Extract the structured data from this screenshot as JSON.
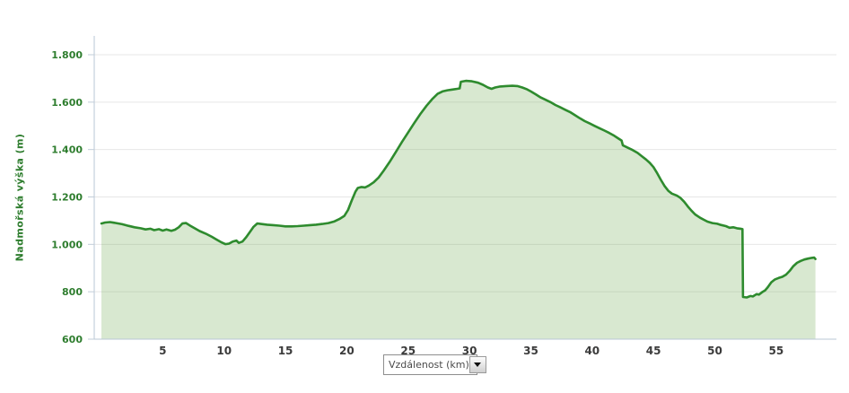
{
  "chart_data": {
    "type": "area",
    "title": "",
    "xlabel": "Vzdálenost (km)",
    "ylabel": "Nadmořská výška (m)",
    "xlim": [
      0,
      58.5
    ],
    "ylim": [
      600,
      1800
    ],
    "grid": true,
    "legend": false,
    "x_ticks": [
      5,
      10,
      15,
      20,
      25,
      30,
      35,
      40,
      45,
      50,
      55
    ],
    "y_ticks": [
      {
        "value": 600,
        "label": "600"
      },
      {
        "value": 800,
        "label": "800"
      },
      {
        "value": 1000,
        "label": "1.000"
      },
      {
        "value": 1200,
        "label": "1.200"
      },
      {
        "value": 1400,
        "label": "1.400"
      },
      {
        "value": 1600,
        "label": "1.600"
      },
      {
        "value": 1800,
        "label": "1.800"
      }
    ],
    "series": [
      {
        "name": "Nadmořská výška (m)",
        "points": [
          [
            0,
            1088
          ],
          [
            0.3,
            1092
          ],
          [
            0.7,
            1094
          ],
          [
            1.2,
            1090
          ],
          [
            1.7,
            1085
          ],
          [
            2.2,
            1078
          ],
          [
            2.7,
            1072
          ],
          [
            3.2,
            1068
          ],
          [
            3.6,
            1063
          ],
          [
            4,
            1066
          ],
          [
            4.3,
            1060
          ],
          [
            4.7,
            1064
          ],
          [
            5,
            1058
          ],
          [
            5.3,
            1063
          ],
          [
            5.7,
            1057
          ],
          [
            6,
            1062
          ],
          [
            6.3,
            1072
          ],
          [
            6.6,
            1088
          ],
          [
            6.9,
            1090
          ],
          [
            7.2,
            1080
          ],
          [
            7.6,
            1068
          ],
          [
            8,
            1056
          ],
          [
            8.5,
            1045
          ],
          [
            9,
            1032
          ],
          [
            9.4,
            1020
          ],
          [
            9.8,
            1008
          ],
          [
            10.1,
            1001
          ],
          [
            10.4,
            1003
          ],
          [
            10.7,
            1012
          ],
          [
            11,
            1016
          ],
          [
            11.2,
            1006
          ],
          [
            11.5,
            1012
          ],
          [
            11.8,
            1030
          ],
          [
            12.1,
            1052
          ],
          [
            12.4,
            1074
          ],
          [
            12.7,
            1088
          ],
          [
            13,
            1086
          ],
          [
            13.5,
            1083
          ],
          [
            14,
            1081
          ],
          [
            14.5,
            1079
          ],
          [
            15,
            1076
          ],
          [
            15.5,
            1076
          ],
          [
            16,
            1077
          ],
          [
            16.5,
            1079
          ],
          [
            17,
            1081
          ],
          [
            17.5,
            1083
          ],
          [
            18,
            1086
          ],
          [
            18.5,
            1090
          ],
          [
            19,
            1097
          ],
          [
            19.4,
            1107
          ],
          [
            19.8,
            1120
          ],
          [
            20.1,
            1145
          ],
          [
            20.4,
            1185
          ],
          [
            20.7,
            1222
          ],
          [
            20.9,
            1238
          ],
          [
            21.2,
            1242
          ],
          [
            21.5,
            1240
          ],
          [
            21.8,
            1248
          ],
          [
            22.2,
            1262
          ],
          [
            22.6,
            1282
          ],
          [
            23,
            1310
          ],
          [
            23.5,
            1348
          ],
          [
            24,
            1390
          ],
          [
            24.5,
            1432
          ],
          [
            25,
            1472
          ],
          [
            25.5,
            1512
          ],
          [
            26,
            1550
          ],
          [
            26.5,
            1585
          ],
          [
            27,
            1615
          ],
          [
            27.4,
            1635
          ],
          [
            27.8,
            1645
          ],
          [
            28.2,
            1650
          ],
          [
            28.6,
            1653
          ],
          [
            29,
            1656
          ],
          [
            29.2,
            1658
          ],
          [
            29.3,
            1686
          ],
          [
            29.7,
            1690
          ],
          [
            30.2,
            1688
          ],
          [
            30.7,
            1682
          ],
          [
            31.1,
            1673
          ],
          [
            31.5,
            1662
          ],
          [
            31.8,
            1656
          ],
          [
            32.1,
            1662
          ],
          [
            32.5,
            1666
          ],
          [
            33,
            1668
          ],
          [
            33.5,
            1669
          ],
          [
            33.9,
            1668
          ],
          [
            34.3,
            1662
          ],
          [
            34.7,
            1654
          ],
          [
            35,
            1645
          ],
          [
            35.4,
            1633
          ],
          [
            35.8,
            1620
          ],
          [
            36.2,
            1610
          ],
          [
            36.6,
            1600
          ],
          [
            37,
            1588
          ],
          [
            37.4,
            1578
          ],
          [
            37.8,
            1568
          ],
          [
            38.2,
            1558
          ],
          [
            38.6,
            1545
          ],
          [
            39,
            1532
          ],
          [
            39.4,
            1520
          ],
          [
            39.8,
            1510
          ],
          [
            40.2,
            1500
          ],
          [
            40.6,
            1490
          ],
          [
            41,
            1480
          ],
          [
            41.4,
            1470
          ],
          [
            41.8,
            1458
          ],
          [
            42.1,
            1448
          ],
          [
            42.4,
            1438
          ],
          [
            42.5,
            1418
          ],
          [
            42.9,
            1408
          ],
          [
            43.3,
            1398
          ],
          [
            43.7,
            1386
          ],
          [
            44.1,
            1370
          ],
          [
            44.4,
            1358
          ],
          [
            44.7,
            1344
          ],
          [
            45,
            1326
          ],
          [
            45.3,
            1300
          ],
          [
            45.6,
            1272
          ],
          [
            45.9,
            1246
          ],
          [
            46.2,
            1226
          ],
          [
            46.5,
            1214
          ],
          [
            46.9,
            1206
          ],
          [
            47.2,
            1196
          ],
          [
            47.5,
            1180
          ],
          [
            47.8,
            1160
          ],
          [
            48.1,
            1142
          ],
          [
            48.4,
            1126
          ],
          [
            48.8,
            1112
          ],
          [
            49.1,
            1104
          ],
          [
            49.4,
            1096
          ],
          [
            49.8,
            1090
          ],
          [
            50.2,
            1087
          ],
          [
            50.5,
            1082
          ],
          [
            50.9,
            1077
          ],
          [
            51.2,
            1070
          ],
          [
            51.5,
            1072
          ],
          [
            51.8,
            1068
          ],
          [
            52.1,
            1066
          ],
          [
            52.25,
            1064
          ],
          [
            52.3,
            778
          ],
          [
            52.6,
            776
          ],
          [
            52.9,
            782
          ],
          [
            53.1,
            780
          ],
          [
            53.4,
            790
          ],
          [
            53.6,
            788
          ],
          [
            53.9,
            800
          ],
          [
            54.1,
            806
          ],
          [
            54.3,
            818
          ],
          [
            54.6,
            840
          ],
          [
            54.9,
            852
          ],
          [
            55.2,
            858
          ],
          [
            55.5,
            863
          ],
          [
            55.8,
            872
          ],
          [
            56.1,
            888
          ],
          [
            56.4,
            908
          ],
          [
            56.7,
            922
          ],
          [
            57,
            930
          ],
          [
            57.3,
            936
          ],
          [
            57.6,
            940
          ],
          [
            57.9,
            943
          ],
          [
            58.1,
            944
          ],
          [
            58.2,
            938
          ]
        ]
      }
    ]
  },
  "controls": {
    "x_axis_dropdown": {
      "value": "Vzdálenost (km)",
      "icon": "chevron-down-icon"
    }
  },
  "colors": {
    "line": "#2e8b2e",
    "fill": "rgba(110,170,80,0.27)",
    "y_label": "#2e7d2e",
    "x_label": "#3b3b3b",
    "gridline": "#e7e7e7",
    "axis_line": "#b9c7d6",
    "tick": "#c2ced9",
    "background": "#ffffff"
  }
}
